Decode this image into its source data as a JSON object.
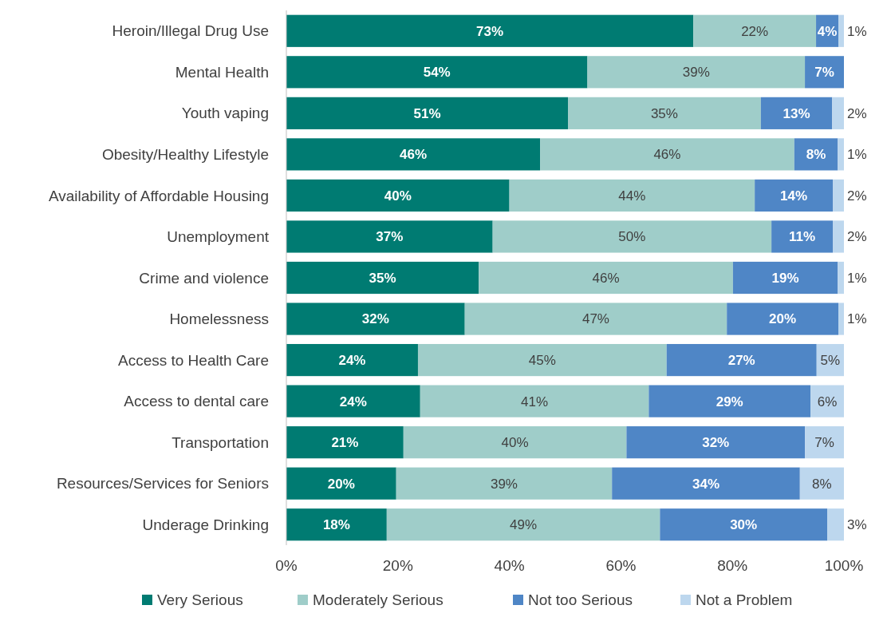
{
  "chart_data": {
    "type": "bar",
    "orientation": "horizontal",
    "stacked": true,
    "categories": [
      "Heroin/Illegal Drug Use",
      "Mental Health",
      "Youth vaping",
      "Obesity/Healthy Lifestyle",
      "Availability of Affordable Housing",
      "Unemployment",
      "Crime and violence",
      "Homelessness",
      "Access to Health Care",
      "Access to dental care",
      "Transportation",
      "Resources/Services for Seniors",
      "Underage Drinking"
    ],
    "series": [
      {
        "name": "Very Serious",
        "color": "#007b72",
        "values": [
          73,
          54,
          50.5,
          45.5,
          40,
          37,
          34.5,
          32,
          23.6,
          24,
          21,
          19.7,
          18
        ],
        "value_labels": [
          "73%",
          "54%",
          "51%",
          "46%",
          "40%",
          "37%",
          "35%",
          "32%",
          "24%",
          "24%",
          "21%",
          "20%",
          "18%"
        ]
      },
      {
        "name": "Moderately Serious",
        "color": "#9fcdc9",
        "values": [
          22,
          39,
          34.6,
          45.6,
          44,
          50,
          45.6,
          47,
          44.6,
          41,
          40,
          38.7,
          49
        ],
        "value_labels": [
          "22%",
          "39%",
          "35%",
          "46%",
          "44%",
          "50%",
          "46%",
          "47%",
          "45%",
          "41%",
          "40%",
          "39%",
          "49%"
        ]
      },
      {
        "name": "Not too Serious",
        "color": "#4f86c6",
        "values": [
          4,
          7,
          12.8,
          7.8,
          14,
          11,
          18.8,
          20,
          26.9,
          29,
          32,
          33.7,
          30
        ],
        "value_labels": [
          "4%",
          "7%",
          "13%",
          "8%",
          "14%",
          "11%",
          "19%",
          "20%",
          "27%",
          "29%",
          "32%",
          "34%",
          "30%"
        ]
      },
      {
        "name": "Not a Problem",
        "color": "#bdd7ee",
        "values": [
          1,
          null,
          2.1,
          1.1,
          2,
          2,
          1.1,
          1,
          4.9,
          6,
          7,
          7.9,
          3
        ],
        "value_labels": [
          "1%",
          null,
          "2%",
          "1%",
          "2%",
          "2%",
          "1%",
          "1%",
          "5%",
          "6%",
          "7%",
          "8%",
          "3%"
        ]
      }
    ],
    "xlim": [
      0,
      100
    ],
    "xticks": [
      {
        "value": 0,
        "label": "0%"
      },
      {
        "value": 20,
        "label": "20%"
      },
      {
        "value": 40,
        "label": "40%"
      },
      {
        "value": 60,
        "label": "60%"
      },
      {
        "value": 80,
        "label": "80%"
      },
      {
        "value": 100,
        "label": "100%"
      }
    ],
    "legend": "bottom",
    "grid": false
  }
}
